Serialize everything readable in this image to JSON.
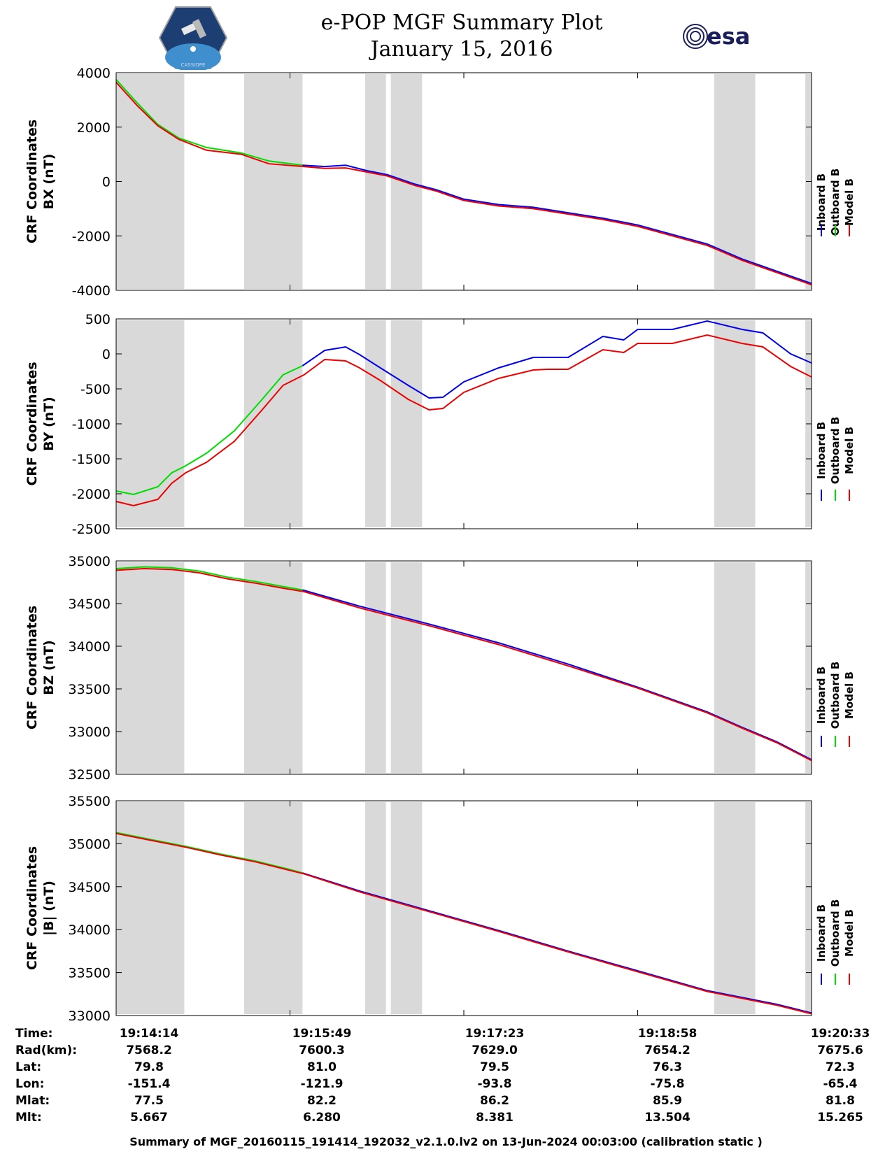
{
  "title": {
    "line1": "e-POP MGF Summary Plot",
    "line2": "January 15, 2016"
  },
  "logos": {
    "left": {
      "icon": "cassiope-mission-patch",
      "text": "CASSIOPE"
    },
    "right": {
      "icon": "esa-logo",
      "text": "esa"
    }
  },
  "legend": {
    "labels": [
      "Inboard B",
      "Outboard B",
      "Model B"
    ],
    "colors": [
      "#0000ee",
      "#00dd00",
      "#ee0000"
    ]
  },
  "info_table": {
    "row_labels": [
      "Time:",
      "Rad(km):",
      "Lat:",
      "Lon:",
      "Mlat:",
      "Mlt:"
    ],
    "columns": [
      [
        "19:14:14",
        "7568.2",
        "79.8",
        "-151.4",
        "77.5",
        "5.667"
      ],
      [
        "19:15:49",
        "7600.3",
        "81.0",
        "-121.9",
        "82.2",
        "6.280"
      ],
      [
        "19:17:23",
        "7629.0",
        "79.5",
        "-93.8",
        "86.2",
        "8.381"
      ],
      [
        "19:18:58",
        "7654.2",
        "76.3",
        "-75.8",
        "85.9",
        "13.504"
      ],
      [
        "19:20:33",
        "7675.6",
        "72.3",
        "-65.4",
        "81.8",
        "15.265"
      ]
    ]
  },
  "footer": "Summary of MGF_20160115_191414_192032_v2.1.0.lv2 on 13-Jun-2024 00:03:00 (calibration static )",
  "chart_data": [
    {
      "type": "line",
      "ylabel_line1": "CRF Coordinates",
      "ylabel_line2": "BX (nT)",
      "ylim": [
        -4000,
        4000
      ],
      "yticks": [
        -4000,
        -2000,
        0,
        2000,
        4000
      ],
      "xlim": [
        0,
        1.0
      ],
      "xticks_minutes": [
        0,
        0.25,
        0.5,
        0.75,
        1.0
      ],
      "gray_intervals": [
        [
          0,
          0.098
        ],
        [
          0.184,
          0.268
        ],
        [
          0.358,
          0.388
        ],
        [
          0.395,
          0.44
        ],
        [
          0.86,
          0.919
        ],
        [
          0.991,
          1.0
        ]
      ],
      "series": [
        {
          "name": "Inboard B",
          "color": "#0000ee",
          "x": [
            0.268,
            0.3,
            0.33,
            0.36,
            0.39,
            0.43,
            0.46,
            0.5,
            0.55,
            0.6,
            0.65,
            0.7,
            0.75,
            0.8,
            0.85,
            0.9,
            0.95,
            1.0
          ],
          "y": [
            600,
            550,
            600,
            400,
            250,
            -100,
            -300,
            -650,
            -850,
            -950,
            -1150,
            -1350,
            -1600,
            -1950,
            -2300,
            -2850,
            -3300,
            -3750
          ]
        },
        {
          "name": "Outboard B",
          "color": "#00dd00",
          "x": [
            0,
            0.03,
            0.06,
            0.09,
            0.13,
            0.18,
            0.22,
            0.268
          ],
          "y": [
            3750,
            2900,
            2100,
            1600,
            1250,
            1050,
            750,
            600
          ]
        },
        {
          "name": "Model B",
          "color": "#ee0000",
          "x": [
            0,
            0.03,
            0.06,
            0.09,
            0.13,
            0.18,
            0.22,
            0.27,
            0.3,
            0.33,
            0.36,
            0.39,
            0.43,
            0.46,
            0.5,
            0.55,
            0.6,
            0.65,
            0.7,
            0.75,
            0.8,
            0.85,
            0.9,
            0.95,
            1.0
          ],
          "y": [
            3650,
            2800,
            2050,
            1550,
            1150,
            1000,
            650,
            550,
            480,
            500,
            350,
            200,
            -150,
            -350,
            -700,
            -900,
            -1000,
            -1200,
            -1400,
            -1650,
            -2000,
            -2350,
            -2900,
            -3350,
            -3800
          ]
        }
      ]
    },
    {
      "type": "line",
      "ylabel_line1": "CRF Coordinates",
      "ylabel_line2": "BY (nT)",
      "ylim": [
        -2500,
        500
      ],
      "yticks": [
        -2500,
        -2000,
        -1500,
        -1000,
        -500,
        0,
        500
      ],
      "xlim": [
        0,
        1.0
      ],
      "gray_intervals": [
        [
          0,
          0.098
        ],
        [
          0.184,
          0.268
        ],
        [
          0.358,
          0.388
        ],
        [
          0.395,
          0.44
        ],
        [
          0.86,
          0.919
        ],
        [
          0.991,
          1.0
        ]
      ],
      "series": [
        {
          "name": "Inboard B",
          "color": "#0000ee",
          "x": [
            0.268,
            0.3,
            0.33,
            0.35,
            0.38,
            0.42,
            0.45,
            0.47,
            0.5,
            0.55,
            0.6,
            0.62,
            0.65,
            0.7,
            0.73,
            0.75,
            0.8,
            0.85,
            0.9,
            0.93,
            0.97,
            1.0
          ],
          "y": [
            -170,
            50,
            100,
            -10,
            -200,
            -450,
            -630,
            -620,
            -400,
            -200,
            -50,
            -50,
            -50,
            250,
            200,
            350,
            350,
            470,
            350,
            300,
            0,
            -130
          ]
        },
        {
          "name": "Outboard B",
          "color": "#00dd00",
          "x": [
            0,
            0.025,
            0.06,
            0.08,
            0.1,
            0.13,
            0.17,
            0.21,
            0.24,
            0.268
          ],
          "y": [
            -1960,
            -2010,
            -1900,
            -1700,
            -1600,
            -1420,
            -1100,
            -650,
            -300,
            -170
          ]
        },
        {
          "name": "Model B",
          "color": "#ee0000",
          "x": [
            0,
            0.025,
            0.06,
            0.08,
            0.1,
            0.13,
            0.17,
            0.21,
            0.24,
            0.27,
            0.3,
            0.33,
            0.35,
            0.38,
            0.42,
            0.45,
            0.47,
            0.5,
            0.55,
            0.6,
            0.62,
            0.65,
            0.7,
            0.73,
            0.75,
            0.8,
            0.85,
            0.9,
            0.93,
            0.97,
            1.0
          ],
          "y": [
            -2110,
            -2170,
            -2080,
            -1850,
            -1700,
            -1550,
            -1250,
            -800,
            -450,
            -300,
            -80,
            -100,
            -200,
            -380,
            -650,
            -800,
            -780,
            -550,
            -350,
            -230,
            -220,
            -220,
            60,
            20,
            150,
            150,
            270,
            150,
            100,
            -180,
            -330
          ]
        }
      ]
    },
    {
      "type": "line",
      "ylabel_line1": "CRF Coordinates",
      "ylabel_line2": "BZ (nT)",
      "ylim": [
        32500,
        35000
      ],
      "yticks": [
        32500,
        33000,
        33500,
        34000,
        34500,
        35000
      ],
      "xlim": [
        0,
        1.0
      ],
      "gray_intervals": [
        [
          0,
          0.098
        ],
        [
          0.184,
          0.268
        ],
        [
          0.358,
          0.388
        ],
        [
          0.395,
          0.44
        ],
        [
          0.86,
          0.919
        ],
        [
          0.991,
          1.0
        ]
      ],
      "series": [
        {
          "name": "Inboard B",
          "color": "#0000ee",
          "x": [
            0.268,
            0.35,
            0.45,
            0.55,
            0.65,
            0.75,
            0.85,
            0.9,
            0.95,
            1.0
          ],
          "y": [
            34660,
            34470,
            34260,
            34040,
            33790,
            33520,
            33230,
            33050,
            32880,
            32670
          ]
        },
        {
          "name": "Outboard B",
          "color": "#00dd00",
          "x": [
            0,
            0.04,
            0.08,
            0.12,
            0.16,
            0.2,
            0.24,
            0.268
          ],
          "y": [
            34910,
            34930,
            34920,
            34880,
            34810,
            34760,
            34700,
            34660
          ]
        },
        {
          "name": "Model B",
          "color": "#ee0000",
          "x": [
            0,
            0.04,
            0.08,
            0.12,
            0.16,
            0.2,
            0.24,
            0.27,
            0.35,
            0.45,
            0.55,
            0.65,
            0.75,
            0.85,
            0.9,
            0.95,
            1.0
          ],
          "y": [
            34890,
            34910,
            34900,
            34860,
            34790,
            34740,
            34680,
            34640,
            34450,
            34240,
            34020,
            33770,
            33510,
            33220,
            33040,
            32870,
            32660
          ]
        }
      ]
    },
    {
      "type": "line",
      "ylabel_line1": "CRF Coordinates",
      "ylabel_line2": "|B| (nT)",
      "ylim": [
        33000,
        35500
      ],
      "yticks": [
        33000,
        33500,
        34000,
        34500,
        35000,
        35500
      ],
      "xlim": [
        0,
        1.0
      ],
      "gray_intervals": [
        [
          0,
          0.098
        ],
        [
          0.184,
          0.268
        ],
        [
          0.358,
          0.388
        ],
        [
          0.395,
          0.44
        ],
        [
          0.86,
          0.919
        ],
        [
          0.991,
          1.0
        ]
      ],
      "series": [
        {
          "name": "Inboard B",
          "color": "#0000ee",
          "x": [
            0.268,
            0.35,
            0.45,
            0.55,
            0.65,
            0.75,
            0.85,
            0.95,
            1.0
          ],
          "y": [
            34660,
            34450,
            34220,
            33990,
            33750,
            33520,
            33290,
            33130,
            33030
          ]
        },
        {
          "name": "Outboard B",
          "color": "#00dd00",
          "x": [
            0,
            0.05,
            0.1,
            0.15,
            0.2,
            0.25,
            0.268
          ],
          "y": [
            35130,
            35050,
            34970,
            34880,
            34800,
            34700,
            34660
          ]
        },
        {
          "name": "Model B",
          "color": "#ee0000",
          "x": [
            0,
            0.05,
            0.1,
            0.15,
            0.2,
            0.25,
            0.27,
            0.35,
            0.45,
            0.55,
            0.65,
            0.75,
            0.85,
            0.95,
            1.0
          ],
          "y": [
            35120,
            35040,
            34960,
            34870,
            34790,
            34690,
            34650,
            34440,
            34210,
            33980,
            33740,
            33510,
            33280,
            33120,
            33020
          ]
        }
      ]
    }
  ]
}
